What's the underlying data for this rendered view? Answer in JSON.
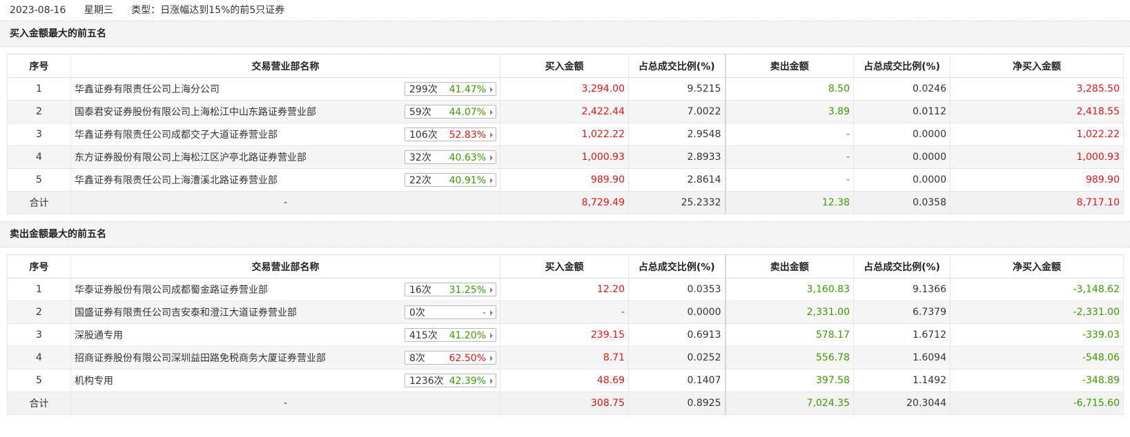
{
  "header": {
    "date": "2023-08-16",
    "weekday": "星期三",
    "type_label": "类型：日涨幅达到15%的前5只证券"
  },
  "columns": {
    "seq": "序号",
    "name": "交易营业部名称",
    "buy": "买入金额",
    "buy_pct": "占总成交比例(%)",
    "sell": "卖出金额",
    "sell_pct": "占总成交比例(%)",
    "net": "净买入金额"
  },
  "buy_section": {
    "title": "买入金额最大的前五名",
    "rows": [
      {
        "seq": "1",
        "name": "华鑫证券有限责任公司上海分公司",
        "count": "299次",
        "rate": "41.47%",
        "rate_color": "green",
        "buy": "3,294.00",
        "buy_pct": "9.5215",
        "sell": "8.50",
        "sell_pct": "0.0246",
        "net": "3,285.50",
        "net_color": "red"
      },
      {
        "seq": "2",
        "name": "国泰君安证券股份有限公司上海松江中山东路证券营业部",
        "count": "59次",
        "rate": "44.07%",
        "rate_color": "green",
        "buy": "2,422.44",
        "buy_pct": "7.0022",
        "sell": "3.89",
        "sell_pct": "0.0112",
        "net": "2,418.55",
        "net_color": "red"
      },
      {
        "seq": "3",
        "name": "华鑫证券有限责任公司成都交子大道证券营业部",
        "count": "106次",
        "rate": "52.83%",
        "rate_color": "red",
        "buy": "1,022.22",
        "buy_pct": "2.9548",
        "sell": "-",
        "sell_pct": "0.0000",
        "net": "1,022.22",
        "net_color": "red"
      },
      {
        "seq": "4",
        "name": "东方证券股份有限公司上海松江区沪亭北路证券营业部",
        "count": "32次",
        "rate": "40.63%",
        "rate_color": "green",
        "buy": "1,000.93",
        "buy_pct": "2.8933",
        "sell": "-",
        "sell_pct": "0.0000",
        "net": "1,000.93",
        "net_color": "red"
      },
      {
        "seq": "5",
        "name": "华鑫证券有限责任公司上海漕溪北路证券营业部",
        "count": "22次",
        "rate": "40.91%",
        "rate_color": "green",
        "buy": "989.90",
        "buy_pct": "2.8614",
        "sell": "-",
        "sell_pct": "0.0000",
        "net": "989.90",
        "net_color": "red"
      }
    ],
    "total": {
      "label": "合计",
      "name": "-",
      "buy": "8,729.49",
      "buy_pct": "25.2332",
      "sell": "12.38",
      "sell_pct": "0.0358",
      "net": "8,717.10",
      "net_color": "red"
    }
  },
  "sell_section": {
    "title": "卖出金额最大的前五名",
    "rows": [
      {
        "seq": "1",
        "name": "华泰证券股份有限公司成都蜀金路证券营业部",
        "count": "16次",
        "rate": "31.25%",
        "rate_color": "green",
        "buy": "12.20",
        "buy_pct": "0.0353",
        "sell": "3,160.83",
        "sell_pct": "9.1366",
        "net": "-3,148.62",
        "net_color": "green"
      },
      {
        "seq": "2",
        "name": "国盛证券有限责任公司吉安泰和澄江大道证券营业部",
        "count": "0次",
        "rate": "-",
        "rate_color": "gray",
        "buy": "-",
        "buy_pct": "0.0000",
        "sell": "2,331.00",
        "sell_pct": "6.7379",
        "net": "-2,331.00",
        "net_color": "green"
      },
      {
        "seq": "3",
        "name": "深股通专用",
        "count": "415次",
        "rate": "41.20%",
        "rate_color": "green",
        "buy": "239.15",
        "buy_pct": "0.6913",
        "sell": "578.17",
        "sell_pct": "1.6712",
        "net": "-339.03",
        "net_color": "green"
      },
      {
        "seq": "4",
        "name": "招商证券股份有限公司深圳益田路免税商务大厦证券营业部",
        "count": "8次",
        "rate": "62.50%",
        "rate_color": "red",
        "buy": "8.71",
        "buy_pct": "0.0252",
        "sell": "556.78",
        "sell_pct": "1.6094",
        "net": "-548.06",
        "net_color": "green"
      },
      {
        "seq": "5",
        "name": "机构专用",
        "count": "1236次",
        "rate": "42.39%",
        "rate_color": "green",
        "buy": "48.69",
        "buy_pct": "0.1407",
        "sell": "397.58",
        "sell_pct": "1.1492",
        "net": "-348.89",
        "net_color": "green"
      }
    ],
    "total": {
      "label": "合计",
      "name": "-",
      "buy": "308.75",
      "buy_pct": "0.8925",
      "sell": "7,024.35",
      "sell_pct": "20.3044",
      "net": "-6,715.60",
      "net_color": "green"
    }
  },
  "colors": {
    "red": "#e41414",
    "green": "#3a9a00",
    "gray": "#666666"
  }
}
